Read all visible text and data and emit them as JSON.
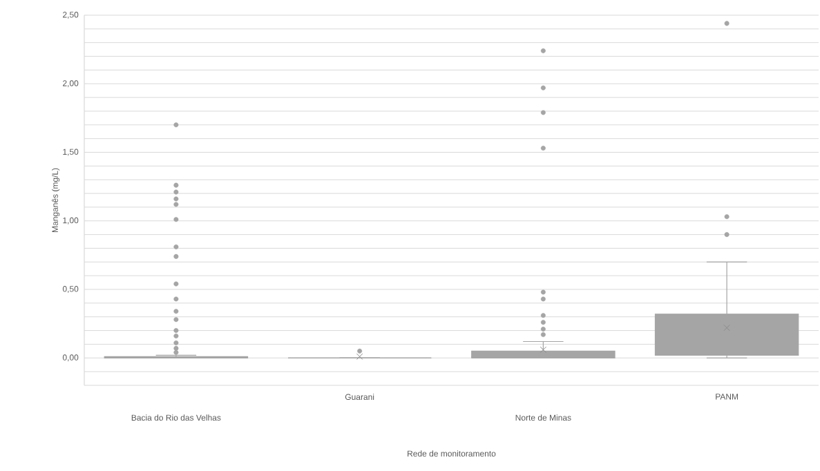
{
  "chart_data": {
    "type": "box",
    "xlabel": "Rede de monitoramento",
    "ylabel": "Manganês (mg/L)",
    "categories": [
      "Bacia do Rio das Velhas",
      "Guarani",
      "Norte de Minas",
      "PANM"
    ],
    "series": [
      {
        "color": "#a5a5a5",
        "boxes": [
          {
            "low": 0,
            "q1": 0,
            "median": 0,
            "q3": 0.01,
            "high": 0.02,
            "outliers": [
              1.7,
              1.26,
              1.21,
              1.16,
              1.12,
              1.01,
              0.81,
              0.74,
              0.54,
              0.43,
              0.34,
              0.28,
              0.2,
              0.16,
              0.11,
              0.07,
              0.04
            ]
          },
          {
            "low": 0,
            "q1": 0,
            "median": 0,
            "q3": 0,
            "high": 0,
            "mean": 0.01,
            "outliers": [
              0.05
            ]
          },
          {
            "low": 0,
            "q1": 0,
            "median": 0.01,
            "q3": 0.05,
            "high": 0.12,
            "mean": 0.06,
            "outliers": [
              2.24,
              1.97,
              1.79,
              1.53,
              0.48,
              0.43,
              0.31,
              0.26,
              0.21,
              0.17
            ]
          },
          {
            "low": 0,
            "q1": 0.02,
            "median": 0.12,
            "q3": 0.32,
            "high": 0.7,
            "mean": 0.22,
            "outliers": [
              2.44,
              1.03,
              0.9
            ]
          }
        ]
      }
    ],
    "ylim": [
      -0.2,
      2.5
    ],
    "yticks": [
      {
        "value": -0.2,
        "label": null
      },
      {
        "value": -0.1,
        "label": null
      },
      {
        "value": 0,
        "label": "0,00"
      },
      {
        "value": 0.1,
        "label": null
      },
      {
        "value": 0.2,
        "label": null
      },
      {
        "value": 0.3,
        "label": null
      },
      {
        "value": 0.4,
        "label": null
      },
      {
        "value": 0.5,
        "label": "0,50"
      },
      {
        "value": 0.6,
        "label": null
      },
      {
        "value": 0.7,
        "label": null
      },
      {
        "value": 0.8,
        "label": null
      },
      {
        "value": 0.9,
        "label": null
      },
      {
        "value": 1.0,
        "label": "1,00"
      },
      {
        "value": 1.1,
        "label": null
      },
      {
        "value": 1.2,
        "label": null
      },
      {
        "value": 1.3,
        "label": null
      },
      {
        "value": 1.4,
        "label": null
      },
      {
        "value": 1.5,
        "label": "1,50"
      },
      {
        "value": 1.6,
        "label": null
      },
      {
        "value": 1.7,
        "label": null
      },
      {
        "value": 1.8,
        "label": null
      },
      {
        "value": 1.9,
        "label": null
      },
      {
        "value": 2.0,
        "label": "2,00"
      },
      {
        "value": 2.1,
        "label": null
      },
      {
        "value": 2.2,
        "label": null
      },
      {
        "value": 2.3,
        "label": null
      },
      {
        "value": 2.4,
        "label": null
      },
      {
        "value": 2.5,
        "label": "2,50"
      }
    ],
    "grid": "y"
  }
}
